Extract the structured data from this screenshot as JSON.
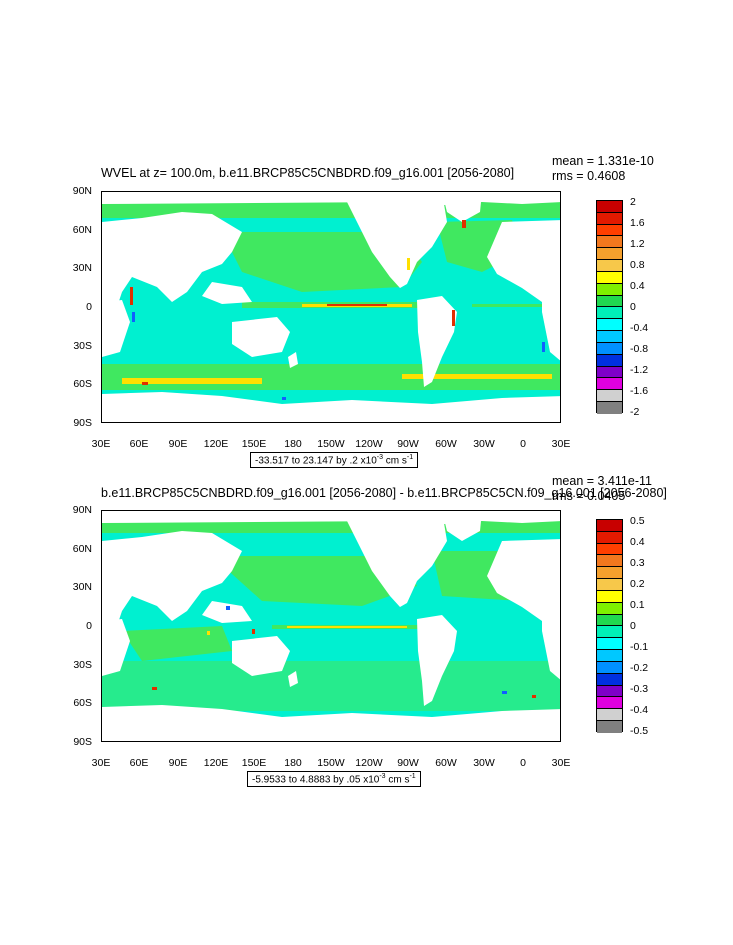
{
  "panels": [
    {
      "title": "WVEL at z= 100.0m, b.e11.BRCP85C5CNBDRD.f09_g16.001 [2056-2080]",
      "mean": "mean = 1.331e-10",
      "rms": "rms = 0.4608",
      "range_text": "-33.517 to 23.147 by .2 x10",
      "range_exp": "-3",
      "range_units": " cm s",
      "range_units_exp": "-1",
      "colorbar_labels": [
        "2",
        "1.6",
        "1.2",
        "0.8",
        "0.4",
        "0",
        "-0.4",
        "-0.8",
        "-1.2",
        "-1.6",
        "-2"
      ]
    },
    {
      "title": "b.e11.BRCP85C5CNBDRD.f09_g16.001 [2056-2080] - b.e11.BRCP85C5CN.f09_g16.001 [2056-2080]",
      "mean": "mean = 3.411e-11",
      "rms": "rms = 0.0405",
      "range_text": "-5.9533 to 4.8883 by .05 x10",
      "range_exp": "-3",
      "range_units": " cm s",
      "range_units_exp": "-1",
      "colorbar_labels": [
        "0.5",
        "0.4",
        "0.3",
        "0.2",
        "0.1",
        "0",
        "-0.1",
        "-0.2",
        "-0.3",
        "-0.4",
        "-0.5"
      ]
    }
  ],
  "lat_labels": [
    "90N",
    "60N",
    "30N",
    "0",
    "30S",
    "60S",
    "90S"
  ],
  "lon_labels": [
    "30E",
    "60E",
    "90E",
    "120E",
    "150E",
    "180",
    "150W",
    "120W",
    "90W",
    "60W",
    "30W",
    "0",
    "30E"
  ],
  "colorbar_colors": [
    "#c80000",
    "#e31a00",
    "#ff3f00",
    "#f2781e",
    "#f5a02d",
    "#f7c84a",
    "#ffff00",
    "#7ff000",
    "#20d850",
    "#00f0b8",
    "#00ffff",
    "#00c8ff",
    "#0090ff",
    "#0030e0",
    "#7f00c8",
    "#e000e0",
    "#d0d0d0",
    "#808080"
  ],
  "map_colors": {
    "ocean": "#00f0d0",
    "land": "#ffffff",
    "green": "#40e860",
    "yellow": "#ffe000",
    "red": "#e03000",
    "blue": "#1060ff"
  }
}
